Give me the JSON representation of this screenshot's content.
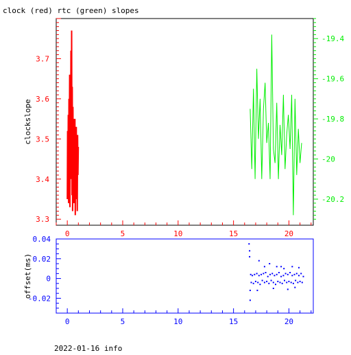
{
  "page_title": "clock (red) rtc (green) slopes",
  "footer": "2022-01-16 info",
  "colors": {
    "frame": "#000000",
    "clock": "#ff0000",
    "rtc": "#00ee00",
    "offset": "#0000ff"
  },
  "chart_data": [
    {
      "type": "line",
      "title": "clock (red) rtc (green) slopes",
      "ylabel": "clockslope",
      "xlim": [
        -1,
        22.2
      ],
      "ylim": [
        3.285,
        3.8
      ],
      "xticks": [
        0,
        5,
        10,
        15,
        20
      ],
      "xtick_labels": [
        "0",
        "5",
        "10",
        "15",
        "20"
      ],
      "yticks": [
        3.3,
        3.4,
        3.5,
        3.6,
        3.7
      ],
      "ytick_labels": [
        "3.3",
        "3.4",
        "3.5",
        "3.6",
        "3.7"
      ],
      "right_axis": {
        "ylim": [
          -20.33,
          -19.3
        ],
        "yticks": [
          -20.2,
          -20,
          -19.8,
          -19.6,
          -19.4
        ],
        "ytick_labels": [
          "-20.2",
          "-20",
          "-19.8",
          "-19.6",
          "-19.4"
        ],
        "color": "#00ee00"
      },
      "series": [
        {
          "color": "#ff0000",
          "axis": "left",
          "x": [
            0.0,
            0.03,
            0.06,
            0.09,
            0.12,
            0.15,
            0.18,
            0.21,
            0.24,
            0.27,
            0.3,
            0.33,
            0.36,
            0.39,
            0.42,
            0.45,
            0.48,
            0.51,
            0.54,
            0.57,
            0.6,
            0.63,
            0.66,
            0.69,
            0.72,
            0.75,
            0.78,
            0.81,
            0.84,
            0.87,
            0.9,
            0.93,
            0.96,
            0.99
          ],
          "y": [
            3.35,
            3.52,
            3.38,
            3.56,
            3.34,
            3.6,
            3.45,
            3.66,
            3.33,
            3.62,
            3.47,
            3.72,
            3.4,
            3.77,
            3.36,
            3.63,
            3.32,
            3.58,
            3.42,
            3.55,
            3.34,
            3.54,
            3.4,
            3.55,
            3.31,
            3.5,
            3.4,
            3.53,
            3.35,
            3.47,
            3.32,
            3.51,
            3.41,
            3.48
          ]
        },
        {
          "color": "#00ee00",
          "axis": "right",
          "x": [
            16.5,
            16.65,
            16.8,
            16.95,
            17.1,
            17.25,
            17.4,
            17.55,
            17.7,
            17.85,
            18.0,
            18.15,
            18.3,
            18.45,
            18.6,
            18.75,
            18.9,
            19.05,
            19.2,
            19.35,
            19.5,
            19.65,
            19.8,
            19.95,
            20.1,
            20.25,
            20.4,
            20.55,
            20.7,
            20.85,
            21.0,
            21.15
          ],
          "y": [
            -19.75,
            -20.05,
            -19.65,
            -20.1,
            -19.55,
            -19.9,
            -19.7,
            -20.1,
            -19.75,
            -19.62,
            -19.92,
            -19.82,
            -20.1,
            -19.38,
            -19.95,
            -20.02,
            -19.72,
            -20.1,
            -19.83,
            -19.98,
            -19.68,
            -20.05,
            -19.88,
            -19.78,
            -19.95,
            -19.68,
            -20.28,
            -19.7,
            -20.08,
            -19.85,
            -20.02,
            -19.92
          ]
        }
      ]
    },
    {
      "type": "scatter",
      "ylabel": "offset(ms)",
      "xlim": [
        -1,
        22.2
      ],
      "ylim": [
        -0.035,
        0.04
      ],
      "xticks": [
        0,
        5,
        10,
        15,
        20
      ],
      "xtick_labels": [
        "0",
        "5",
        "10",
        "15",
        "20"
      ],
      "yticks": [
        -0.02,
        0,
        0.02,
        0.04
      ],
      "ytick_labels": [
        "-0.02",
        "0",
        "0.02",
        "0.04"
      ],
      "series": [
        {
          "color": "#0000ff",
          "x": [
            16.4,
            16.45,
            16.5,
            16.55,
            16.6,
            16.7,
            16.8,
            16.9,
            17.0,
            17.1,
            17.2,
            17.3,
            17.4,
            17.5,
            17.6,
            17.7,
            17.8,
            17.9,
            18.0,
            18.1,
            18.2,
            18.3,
            18.4,
            18.5,
            18.6,
            18.7,
            18.8,
            18.9,
            19.0,
            19.1,
            19.2,
            19.3,
            19.4,
            19.5,
            19.6,
            19.7,
            19.8,
            19.9,
            20.0,
            20.1,
            20.2,
            20.3,
            20.4,
            20.5,
            20.6,
            20.7,
            20.8,
            20.9,
            21.0,
            21.1,
            21.2,
            21.3,
            16.45,
            16.5,
            17.3,
            17.8,
            18.25,
            18.9,
            19.3,
            19.55,
            20.3,
            20.9,
            17.15,
            18.6,
            19.9,
            20.55
          ],
          "y": [
            0.035,
            0.028,
            -0.012,
            0.004,
            -0.004,
            0.003,
            -0.005,
            0.004,
            -0.003,
            0.005,
            -0.004,
            0.003,
            -0.006,
            0.004,
            -0.002,
            0.005,
            -0.004,
            0.006,
            -0.003,
            0.002,
            -0.005,
            0.004,
            -0.002,
            0.005,
            -0.004,
            0.003,
            -0.006,
            0.004,
            -0.003,
            0.006,
            -0.004,
            0.002,
            -0.005,
            0.003,
            -0.002,
            0.005,
            -0.004,
            0.004,
            -0.003,
            0.006,
            -0.004,
            0.003,
            -0.005,
            0.004,
            -0.002,
            0.005,
            -0.004,
            0.003,
            -0.003,
            0.005,
            -0.004,
            0.002,
            0.022,
            -0.022,
            0.018,
            0.012,
            0.015,
            0.012,
            0.012,
            0.01,
            0.012,
            0.011,
            -0.012,
            -0.01,
            -0.011,
            -0.009
          ]
        }
      ]
    }
  ]
}
